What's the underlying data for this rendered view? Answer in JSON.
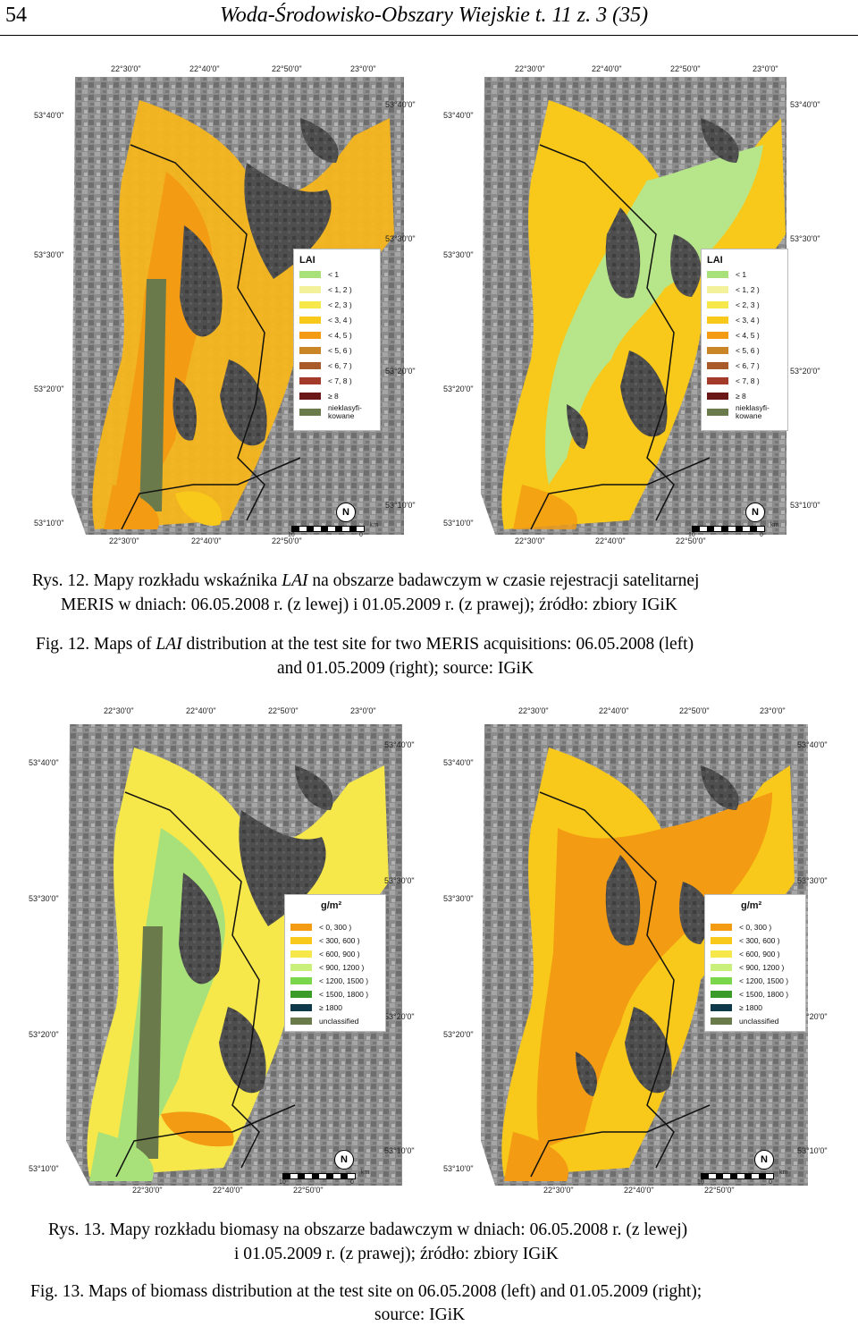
{
  "header": {
    "page_number": "54",
    "journal": "Woda-Środowisko-Obszary Wiejskie t. 11 z. 3 (35)"
  },
  "maps": {
    "lon_top_left": [
      "22°30'0\"",
      "22°40'0\"",
      "22°50'0\"",
      "23°0'0\""
    ],
    "lon_bottom": [
      "22°30'0\"",
      "22°40'0\"",
      "22°50'0\""
    ],
    "lat_left": [
      "53°40'0\"",
      "53°30'0\"",
      "53°20'0\"",
      "53°10'0\""
    ],
    "lat_right": [
      "53°40'0\"",
      "53°30'0\"",
      "53°20'0\"",
      "53°10'0\""
    ],
    "scale_labels": [
      "10",
      "0",
      "km"
    ],
    "north_label": "N",
    "lai_legend": {
      "title": "LAI",
      "items": [
        {
          "label": "< 1",
          "color": "#a8e07a"
        },
        {
          "label": "< 1, 2 )",
          "color": "#f3f29a"
        },
        {
          "label": "< 2, 3 )",
          "color": "#f6e84a"
        },
        {
          "label": "< 3, 4 )",
          "color": "#f8c81a"
        },
        {
          "label": "< 4, 5 )",
          "color": "#f39b12"
        },
        {
          "label": "< 5, 6 )",
          "color": "#c98526"
        },
        {
          "label": "< 6, 7 )",
          "color": "#a85a2a"
        },
        {
          "label": "< 7, 8 )",
          "color": "#a33a2a"
        },
        {
          "label": "≥ 8",
          "color": "#6b1616"
        },
        {
          "label": "nieklasyfi-kowane",
          "color": "#6a7a4a"
        }
      ]
    },
    "biomass_legend": {
      "title": "g/m²",
      "items": [
        {
          "label": "< 0, 300 )",
          "color": "#f39b12"
        },
        {
          "label": "< 300, 600 )",
          "color": "#f8c81a"
        },
        {
          "label": "< 600, 900 )",
          "color": "#f6e84a"
        },
        {
          "label": "< 900, 1200 )",
          "color": "#c8f07a"
        },
        {
          "label": "< 1200, 1500 )",
          "color": "#7ad64a"
        },
        {
          "label": "< 1500, 1800 )",
          "color": "#3a9a2a"
        },
        {
          "label": "≥ 1800",
          "color": "#0c3a4a"
        },
        {
          "label": "unclassified",
          "color": "#6a7a4a"
        }
      ]
    }
  },
  "captions": {
    "fig12_pl_line1_a": "Rys. 12. Mapy rozkładu wskaźnika ",
    "fig12_pl_line1_italic": "LAI",
    "fig12_pl_line1_b": " na obszarze badawczym w czasie rejestracji satelitarnej",
    "fig12_pl_line2": "MERIS w dniach: 06.05.2008 r. (z lewej) i 01.05.2009 r. (z prawej); źródło: zbiory IGiK",
    "fig12_en_line1_a": "Fig. 12. Maps of ",
    "fig12_en_line1_italic": "LAI",
    "fig12_en_line1_b": " distribution at the test site for two MERIS acquisitions: 06.05.2008 (left)",
    "fig12_en_line2": "and 01.05.2009 (right); source: IGiK",
    "fig13_pl_line1": "Rys. 13. Mapy rozkładu biomasy na obszarze badawczym w dniach: 06.05.2008 r. (z lewej)",
    "fig13_pl_line2": "i 01.05.2009 r. (z prawej); źródło: zbiory IGiK",
    "fig13_en_line1": "Fig. 13. Maps of biomass distribution at the test site on 06.05.2008 (left) and 01.05.2009 (right);",
    "fig13_en_line2": "source: IGiK"
  }
}
